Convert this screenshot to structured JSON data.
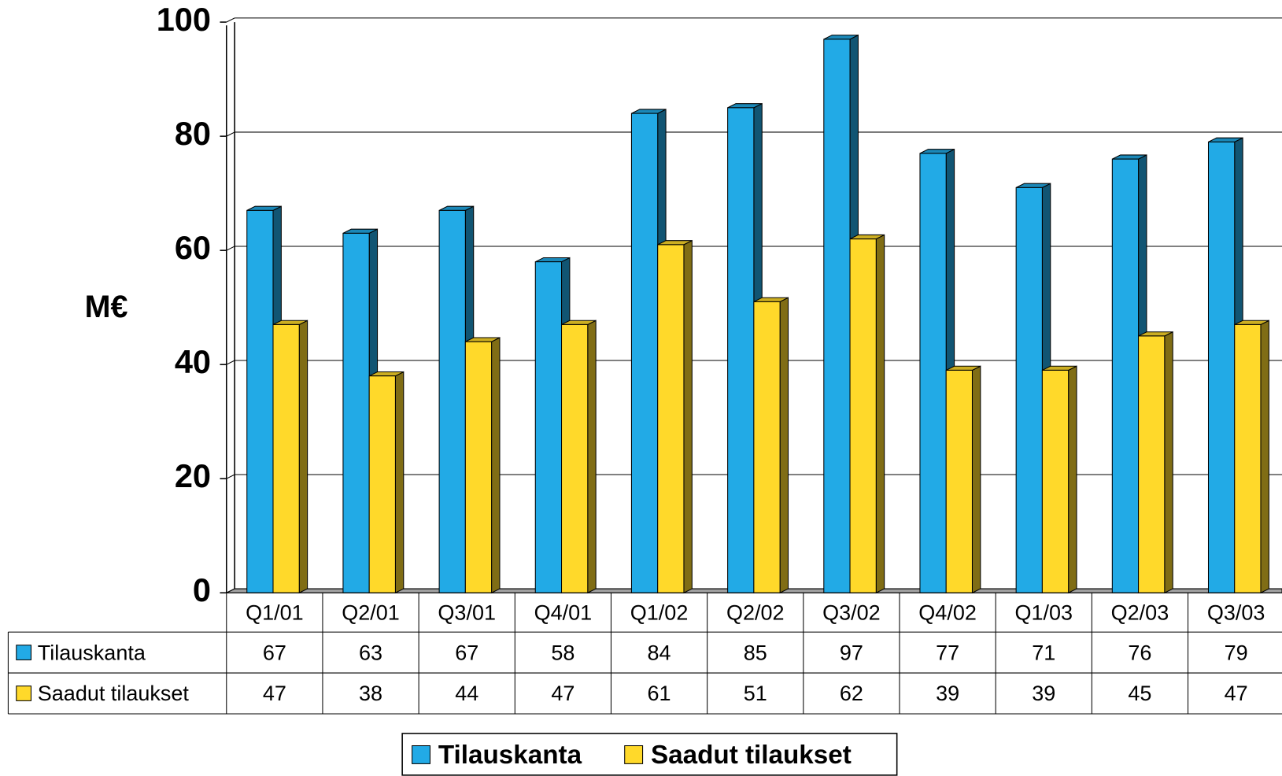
{
  "chart_data": {
    "type": "bar3d",
    "y_label": "M€",
    "categories": [
      "Q1/01",
      "Q2/01",
      "Q3/01",
      "Q4/01",
      "Q1/02",
      "Q2/02",
      "Q3/02",
      "Q4/02",
      "Q1/03",
      "Q2/03",
      "Q3/03"
    ],
    "series": [
      {
        "name": "Tilauskanta",
        "color": "#22aae6",
        "values": [
          67,
          63,
          67,
          58,
          84,
          85,
          97,
          77,
          71,
          76,
          79
        ]
      },
      {
        "name": "Saadut tilaukset",
        "color": "#ffd92a",
        "values": [
          47,
          38,
          44,
          47,
          61,
          51,
          62,
          39,
          39,
          45,
          47
        ]
      }
    ],
    "ylim": [
      0,
      100
    ],
    "yticks": [
      0,
      20,
      40,
      60,
      80,
      100
    ],
    "grid": true,
    "legend": "bottom",
    "data_table": true
  }
}
